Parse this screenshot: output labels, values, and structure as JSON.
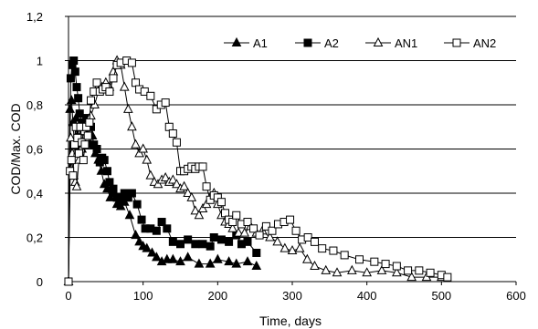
{
  "chart_data": {
    "type": "line",
    "xlabel": "Time, days",
    "ylabel": "COD/Max. COD",
    "xlim": [
      0,
      600
    ],
    "ylim": [
      0,
      1.2
    ],
    "xticks": [
      "0",
      "100",
      "200",
      "300",
      "400",
      "500",
      "600"
    ],
    "yticks": [
      "0",
      "0,2",
      "0,4",
      "0,6",
      "0,8",
      "1",
      "1,2"
    ],
    "grid": "horizontal",
    "legend_position": "top-right",
    "series": [
      {
        "name": "A1",
        "marker": "filled-triangle",
        "points": [
          [
            0,
            0
          ],
          [
            2,
            0.78
          ],
          [
            4,
            0.82
          ],
          [
            6,
            0.72
          ],
          [
            8,
            0.62
          ],
          [
            10,
            0.74
          ],
          [
            12,
            0.66
          ],
          [
            15,
            0.7
          ],
          [
            18,
            0.6
          ],
          [
            22,
            0.68
          ],
          [
            25,
            0.72
          ],
          [
            28,
            0.62
          ],
          [
            32,
            0.66
          ],
          [
            36,
            0.58
          ],
          [
            40,
            0.55
          ],
          [
            44,
            0.5
          ],
          [
            48,
            0.44
          ],
          [
            52,
            0.42
          ],
          [
            56,
            0.38
          ],
          [
            60,
            0.4
          ],
          [
            65,
            0.35
          ],
          [
            70,
            0.34
          ],
          [
            75,
            0.36
          ],
          [
            82,
            0.3
          ],
          [
            90,
            0.21
          ],
          [
            95,
            0.18
          ],
          [
            100,
            0.16
          ],
          [
            105,
            0.15
          ],
          [
            112,
            0.13
          ],
          [
            118,
            0.11
          ],
          [
            125,
            0.09
          ],
          [
            132,
            0.1
          ],
          [
            140,
            0.1
          ],
          [
            150,
            0.09
          ],
          [
            160,
            0.11
          ],
          [
            175,
            0.08
          ],
          [
            190,
            0.08
          ],
          [
            200,
            0.1
          ],
          [
            215,
            0.09
          ],
          [
            225,
            0.08
          ],
          [
            240,
            0.09
          ],
          [
            252,
            0.07
          ]
        ]
      },
      {
        "name": "A2",
        "marker": "filled-square",
        "points": [
          [
            0,
            0
          ],
          [
            3,
            0.92
          ],
          [
            5,
            0.98
          ],
          [
            7,
            1.0
          ],
          [
            9,
            0.95
          ],
          [
            11,
            0.88
          ],
          [
            13,
            0.83
          ],
          [
            15,
            0.76
          ],
          [
            18,
            0.72
          ],
          [
            21,
            0.68
          ],
          [
            24,
            0.74
          ],
          [
            27,
            0.66
          ],
          [
            30,
            0.7
          ],
          [
            34,
            0.62
          ],
          [
            38,
            0.6
          ],
          [
            42,
            0.54
          ],
          [
            45,
            0.56
          ],
          [
            48,
            0.55
          ],
          [
            52,
            0.5
          ],
          [
            55,
            0.45
          ],
          [
            60,
            0.42
          ],
          [
            65,
            0.38
          ],
          [
            70,
            0.37
          ],
          [
            75,
            0.4
          ],
          [
            80,
            0.38
          ],
          [
            85,
            0.4
          ],
          [
            92,
            0.35
          ],
          [
            98,
            0.28
          ],
          [
            103,
            0.24
          ],
          [
            110,
            0.24
          ],
          [
            118,
            0.23
          ],
          [
            125,
            0.27
          ],
          [
            132,
            0.24
          ],
          [
            140,
            0.18
          ],
          [
            150,
            0.17
          ],
          [
            160,
            0.19
          ],
          [
            170,
            0.17
          ],
          [
            180,
            0.17
          ],
          [
            190,
            0.16
          ],
          [
            195,
            0.2
          ],
          [
            205,
            0.19
          ],
          [
            215,
            0.18
          ],
          [
            225,
            0.21
          ],
          [
            232,
            0.17
          ],
          [
            240,
            0.18
          ],
          [
            252,
            0.13
          ]
        ]
      },
      {
        "name": "AN1",
        "marker": "open-triangle",
        "points": [
          [
            0,
            0
          ],
          [
            3,
            0.65
          ],
          [
            5,
            0.58
          ],
          [
            7,
            0.48
          ],
          [
            9,
            0.45
          ],
          [
            11,
            0.43
          ],
          [
            14,
            0.55
          ],
          [
            17,
            0.6
          ],
          [
            20,
            0.68
          ],
          [
            25,
            0.72
          ],
          [
            30,
            0.75
          ],
          [
            35,
            0.8
          ],
          [
            40,
            0.86
          ],
          [
            45,
            0.88
          ],
          [
            50,
            0.9
          ],
          [
            55,
            0.88
          ],
          [
            60,
            0.95
          ],
          [
            65,
            1.0
          ],
          [
            70,
            0.98
          ],
          [
            75,
            0.88
          ],
          [
            80,
            0.78
          ],
          [
            85,
            0.7
          ],
          [
            90,
            0.62
          ],
          [
            95,
            0.58
          ],
          [
            100,
            0.6
          ],
          [
            105,
            0.55
          ],
          [
            110,
            0.48
          ],
          [
            115,
            0.45
          ],
          [
            120,
            0.44
          ],
          [
            125,
            0.46
          ],
          [
            130,
            0.47
          ],
          [
            135,
            0.45
          ],
          [
            140,
            0.46
          ],
          [
            145,
            0.44
          ],
          [
            150,
            0.42
          ],
          [
            155,
            0.43
          ],
          [
            160,
            0.4
          ],
          [
            165,
            0.38
          ],
          [
            170,
            0.32
          ],
          [
            175,
            0.3
          ],
          [
            180,
            0.33
          ],
          [
            185,
            0.35
          ],
          [
            190,
            0.38
          ],
          [
            195,
            0.4
          ],
          [
            200,
            0.35
          ],
          [
            205,
            0.3
          ],
          [
            210,
            0.27
          ],
          [
            215,
            0.26
          ],
          [
            220,
            0.24
          ],
          [
            228,
            0.22
          ],
          [
            236,
            0.22
          ],
          [
            244,
            0.25
          ],
          [
            252,
            0.22
          ],
          [
            260,
            0.23
          ],
          [
            270,
            0.2
          ],
          [
            280,
            0.18
          ],
          [
            290,
            0.15
          ],
          [
            300,
            0.14
          ],
          [
            310,
            0.15
          ],
          [
            320,
            0.1
          ],
          [
            330,
            0.07
          ],
          [
            345,
            0.05
          ],
          [
            360,
            0.04
          ],
          [
            380,
            0.05
          ],
          [
            400,
            0.04
          ],
          [
            420,
            0.05
          ],
          [
            440,
            0.04
          ],
          [
            460,
            0.02
          ],
          [
            480,
            0.02
          ],
          [
            500,
            0.02
          ]
        ]
      },
      {
        "name": "AN2",
        "marker": "open-square",
        "points": [
          [
            0,
            0
          ],
          [
            2,
            0.5
          ],
          [
            4,
            0.55
          ],
          [
            6,
            0.48
          ],
          [
            8,
            0.62
          ],
          [
            10,
            0.7
          ],
          [
            12,
            0.65
          ],
          [
            14,
            0.58
          ],
          [
            16,
            0.7
          ],
          [
            18,
            0.63
          ],
          [
            20,
            0.55
          ],
          [
            22,
            0.62
          ],
          [
            24,
            0.7
          ],
          [
            26,
            0.66
          ],
          [
            28,
            0.72
          ],
          [
            30,
            0.82
          ],
          [
            34,
            0.86
          ],
          [
            38,
            0.9
          ],
          [
            42,
            0.86
          ],
          [
            46,
            0.87
          ],
          [
            50,
            0.88
          ],
          [
            55,
            0.86
          ],
          [
            60,
            0.92
          ],
          [
            65,
            0.98
          ],
          [
            70,
            0.99
          ],
          [
            78,
            1.0
          ],
          [
            85,
            0.99
          ],
          [
            90,
            0.9
          ],
          [
            95,
            0.87
          ],
          [
            102,
            0.86
          ],
          [
            110,
            0.84
          ],
          [
            118,
            0.78
          ],
          [
            124,
            0.8
          ],
          [
            130,
            0.81
          ],
          [
            135,
            0.7
          ],
          [
            140,
            0.67
          ],
          [
            145,
            0.63
          ],
          [
            150,
            0.5
          ],
          [
            155,
            0.5
          ],
          [
            160,
            0.51
          ],
          [
            165,
            0.52
          ],
          [
            170,
            0.51
          ],
          [
            175,
            0.52
          ],
          [
            180,
            0.52
          ],
          [
            185,
            0.43
          ],
          [
            190,
            0.37
          ],
          [
            195,
            0.39
          ],
          [
            200,
            0.38
          ],
          [
            205,
            0.36
          ],
          [
            210,
            0.31
          ],
          [
            215,
            0.28
          ],
          [
            220,
            0.27
          ],
          [
            225,
            0.3
          ],
          [
            232,
            0.26
          ],
          [
            240,
            0.27
          ],
          [
            248,
            0.24
          ],
          [
            256,
            0.21
          ],
          [
            265,
            0.25
          ],
          [
            273,
            0.23
          ],
          [
            281,
            0.26
          ],
          [
            289,
            0.27
          ],
          [
            297,
            0.28
          ],
          [
            305,
            0.23
          ],
          [
            313,
            0.19
          ],
          [
            321,
            0.2
          ],
          [
            330,
            0.18
          ],
          [
            340,
            0.15
          ],
          [
            355,
            0.14
          ],
          [
            370,
            0.12
          ],
          [
            390,
            0.1
          ],
          [
            410,
            0.09
          ],
          [
            425,
            0.08
          ],
          [
            440,
            0.07
          ],
          [
            455,
            0.05
          ],
          [
            470,
            0.05
          ],
          [
            485,
            0.04
          ],
          [
            500,
            0.03
          ],
          [
            508,
            0.02
          ]
        ]
      }
    ]
  }
}
